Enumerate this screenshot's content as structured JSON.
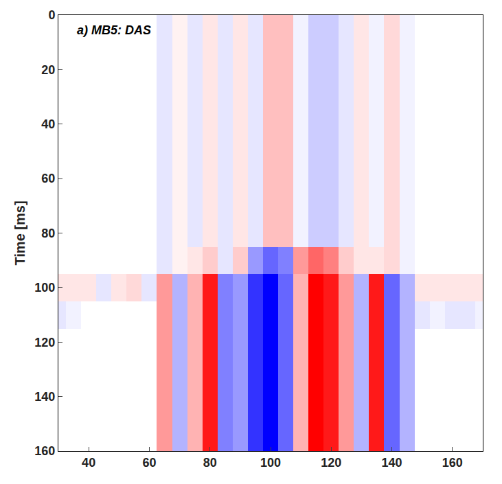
{
  "chart_data": {
    "type": "heatmap",
    "annotation": "a) MB5: DAS",
    "y_label": "Time [ms]",
    "xlim": [
      30,
      170
    ],
    "xticks": [
      40,
      60,
      80,
      100,
      120,
      140,
      160
    ],
    "ylim": [
      160,
      0
    ],
    "yticks": [
      0,
      20,
      40,
      60,
      80,
      100,
      120,
      140,
      160
    ],
    "zlim": [
      -1,
      1
    ],
    "x": [
      30,
      35,
      40,
      45,
      50,
      55,
      60,
      65,
      70,
      75,
      80,
      85,
      90,
      95,
      100,
      105,
      110,
      115,
      120,
      125,
      130,
      135,
      140,
      145,
      150,
      155,
      160,
      165,
      170
    ],
    "y": [
      0,
      10,
      20,
      30,
      40,
      50,
      60,
      70,
      80,
      90,
      100,
      110,
      120,
      130,
      140,
      150,
      160
    ],
    "z": [
      [
        0,
        0,
        0,
        0,
        0,
        0,
        0,
        -0.1,
        0.05,
        -0.1,
        0.1,
        -0.1,
        0.1,
        -0.1,
        0.25,
        0.25,
        -0.05,
        -0.2,
        -0.2,
        -0.1,
        0.1,
        -0.05,
        0.15,
        -0.05,
        0,
        0,
        0,
        0,
        0
      ],
      [
        0,
        0,
        0,
        0,
        0,
        0,
        0,
        -0.1,
        0.05,
        -0.1,
        0.1,
        -0.1,
        0.1,
        -0.1,
        0.25,
        0.25,
        -0.05,
        -0.2,
        -0.2,
        -0.1,
        0.1,
        -0.05,
        0.15,
        -0.05,
        0,
        0,
        0,
        0,
        0
      ],
      [
        0,
        0,
        0,
        0,
        0,
        0,
        0,
        -0.1,
        0.05,
        -0.1,
        0.1,
        -0.1,
        0.1,
        -0.1,
        0.25,
        0.25,
        -0.05,
        -0.2,
        -0.2,
        -0.1,
        0.1,
        -0.05,
        0.15,
        -0.05,
        0,
        0,
        0,
        0,
        0
      ],
      [
        0,
        0,
        0,
        0,
        0,
        0,
        0,
        -0.1,
        0.05,
        -0.1,
        0.1,
        -0.1,
        0.1,
        -0.1,
        0.25,
        0.25,
        -0.05,
        -0.2,
        -0.2,
        -0.1,
        0.1,
        -0.05,
        0.15,
        -0.05,
        0,
        0,
        0,
        0,
        0
      ],
      [
        0,
        0,
        0,
        0,
        0,
        0,
        0,
        -0.1,
        0.05,
        -0.1,
        0.1,
        -0.1,
        0.1,
        -0.1,
        0.25,
        0.25,
        -0.05,
        -0.2,
        -0.2,
        -0.1,
        0.1,
        -0.05,
        0.15,
        -0.05,
        0,
        0,
        0,
        0,
        0
      ],
      [
        0,
        0,
        0,
        0,
        0,
        0,
        0,
        -0.1,
        0.05,
        -0.1,
        0.1,
        -0.1,
        0.1,
        -0.1,
        0.25,
        0.25,
        -0.05,
        -0.2,
        -0.2,
        -0.1,
        0.1,
        -0.05,
        0.15,
        -0.05,
        0,
        0,
        0,
        0,
        0
      ],
      [
        0,
        0,
        0,
        0,
        0,
        0,
        0,
        -0.1,
        0.05,
        -0.1,
        0.1,
        -0.1,
        0.1,
        -0.1,
        0.25,
        0.25,
        -0.05,
        -0.2,
        -0.2,
        -0.1,
        0.1,
        -0.05,
        0.15,
        -0.05,
        0,
        0,
        0,
        0,
        0
      ],
      [
        0,
        0,
        0,
        0,
        0,
        0,
        0,
        -0.1,
        0.05,
        -0.1,
        0.1,
        -0.1,
        0.1,
        -0.1,
        0.25,
        0.25,
        -0.05,
        -0.2,
        -0.2,
        -0.1,
        0.1,
        -0.05,
        0.15,
        -0.05,
        0,
        0,
        0,
        0,
        0
      ],
      [
        0,
        0,
        0,
        0,
        0,
        0,
        0,
        -0.1,
        0.05,
        -0.1,
        0.1,
        -0.1,
        0.1,
        -0.1,
        0.25,
        0.25,
        -0.05,
        -0.2,
        -0.2,
        -0.1,
        0.1,
        -0.05,
        0.15,
        -0.05,
        0,
        0,
        0,
        0,
        0
      ],
      [
        0,
        0,
        0,
        0,
        0,
        0,
        0,
        -0.1,
        0.05,
        0.1,
        0.2,
        -0.1,
        0.2,
        -0.4,
        -0.6,
        -0.5,
        0.4,
        0.6,
        0.5,
        0.2,
        0.1,
        0.1,
        0.15,
        -0.05,
        0,
        0,
        0,
        0,
        0
      ],
      [
        0.1,
        0.1,
        0.1,
        -0.1,
        0.1,
        0.15,
        -0.1,
        0.4,
        -0.3,
        0.3,
        0.9,
        -0.5,
        -0.4,
        -0.8,
        -1.0,
        -0.6,
        0.3,
        1.0,
        0.9,
        0.4,
        -0.3,
        0.9,
        -0.6,
        -0.3,
        0.1,
        0.1,
        0.1,
        0.1,
        0.1
      ],
      [
        -0.1,
        -0.05,
        0,
        0,
        0,
        0,
        0,
        0.4,
        -0.3,
        0.3,
        0.9,
        -0.5,
        -0.4,
        -0.8,
        -1.0,
        -0.6,
        0.3,
        1.0,
        0.9,
        0.4,
        -0.3,
        0.9,
        -0.6,
        -0.3,
        -0.1,
        -0.05,
        -0.1,
        -0.1,
        -0.05
      ],
      [
        0,
        0,
        0,
        0,
        0,
        0,
        0,
        0.4,
        -0.3,
        0.3,
        0.9,
        -0.5,
        -0.4,
        -0.8,
        -1.0,
        -0.6,
        0.3,
        1.0,
        0.9,
        0.4,
        -0.3,
        0.9,
        -0.6,
        -0.3,
        0,
        0,
        0,
        0,
        0
      ],
      [
        0,
        0,
        0,
        0,
        0,
        0,
        0,
        0.4,
        -0.3,
        0.3,
        0.9,
        -0.5,
        -0.4,
        -0.8,
        -1.0,
        -0.6,
        0.3,
        1.0,
        0.9,
        0.4,
        -0.3,
        0.9,
        -0.6,
        -0.3,
        0,
        0,
        0,
        0,
        0
      ],
      [
        0,
        0,
        0,
        0,
        0,
        0,
        0,
        0.4,
        -0.3,
        0.3,
        0.9,
        -0.5,
        -0.4,
        -0.8,
        -1.0,
        -0.6,
        0.3,
        1.0,
        0.9,
        0.4,
        -0.3,
        0.9,
        -0.6,
        -0.3,
        0,
        0,
        0,
        0,
        0
      ],
      [
        0,
        0,
        0,
        0,
        0,
        0,
        0,
        0.4,
        -0.3,
        0.3,
        0.9,
        -0.5,
        -0.4,
        -0.8,
        -1.0,
        -0.6,
        0.3,
        1.0,
        0.9,
        0.4,
        -0.3,
        0.9,
        -0.6,
        -0.3,
        0,
        0,
        0,
        0,
        0
      ],
      [
        0,
        0,
        0,
        0,
        0,
        0,
        0,
        0.4,
        -0.3,
        0.3,
        0.9,
        -0.5,
        -0.4,
        -0.8,
        -1.0,
        -0.6,
        0.3,
        1.0,
        0.9,
        0.4,
        -0.3,
        0.9,
        -0.6,
        -0.3,
        0,
        0,
        0,
        0,
        0
      ]
    ]
  }
}
